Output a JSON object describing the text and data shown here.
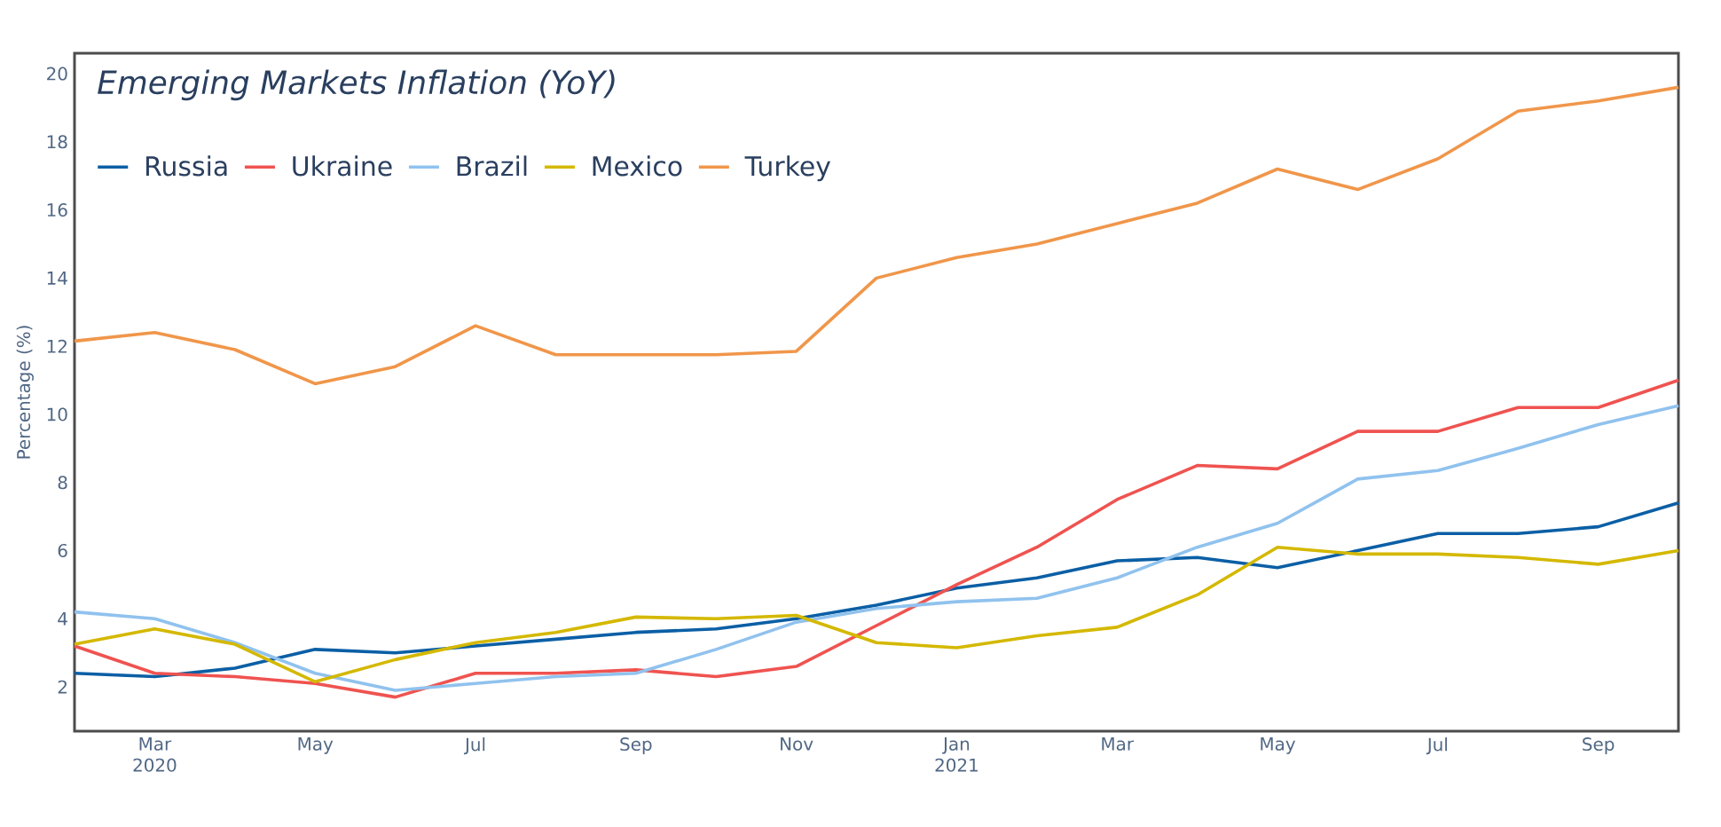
{
  "chart_data": {
    "type": "line",
    "title": "Emerging Markets Inflation (YoY)",
    "ylabel": "Percentage (%)",
    "x": [
      "2020-02",
      "2020-03",
      "2020-04",
      "2020-05",
      "2020-06",
      "2020-07",
      "2020-08",
      "2020-09",
      "2020-10",
      "2020-11",
      "2020-12",
      "2021-01",
      "2021-02",
      "2021-03",
      "2021-04",
      "2021-05",
      "2021-06",
      "2021-07",
      "2021-08",
      "2021-09",
      "2021-10"
    ],
    "series": [
      {
        "name": "Russia",
        "color": "#0b5fa5",
        "values": [
          2.4,
          2.3,
          2.55,
          3.1,
          3.0,
          3.2,
          3.4,
          3.6,
          3.7,
          4.0,
          4.4,
          4.9,
          5.2,
          5.7,
          5.8,
          5.5,
          6.0,
          6.5,
          6.5,
          6.7,
          7.4
        ]
      },
      {
        "name": "Ukraine",
        "color": "#ef5350",
        "values": [
          3.2,
          2.4,
          2.3,
          2.1,
          1.7,
          2.4,
          2.4,
          2.5,
          2.3,
          2.6,
          3.8,
          5.0,
          6.1,
          7.5,
          8.5,
          8.4,
          9.5,
          9.5,
          10.2,
          10.2,
          11.0
        ]
      },
      {
        "name": "Brazil",
        "color": "#90c2ee",
        "values": [
          4.2,
          4.0,
          3.3,
          2.4,
          1.9,
          2.1,
          2.3,
          2.4,
          3.1,
          3.9,
          4.3,
          4.5,
          4.6,
          5.2,
          6.1,
          6.8,
          8.1,
          8.35,
          9.0,
          9.7,
          10.25
        ]
      },
      {
        "name": "Mexico",
        "color": "#d4b800",
        "values": [
          3.25,
          3.7,
          3.25,
          2.15,
          2.8,
          3.3,
          3.6,
          4.05,
          4.0,
          4.1,
          3.3,
          3.15,
          3.5,
          3.75,
          4.7,
          6.1,
          5.9,
          5.9,
          5.8,
          5.6,
          6.0
        ]
      },
      {
        "name": "Turkey",
        "color": "#f0964a",
        "values": [
          12.15,
          12.4,
          11.9,
          10.9,
          11.4,
          12.6,
          11.75,
          11.75,
          11.75,
          11.85,
          14.0,
          14.6,
          15.0,
          15.6,
          16.2,
          17.2,
          16.6,
          17.5,
          18.9,
          19.2,
          19.6
        ]
      }
    ],
    "xlim": [
      "2020-02",
      "2021-10"
    ],
    "xticks": [
      {
        "value": "2020-03",
        "label": "Mar 2020"
      },
      {
        "value": "2020-05",
        "label": "May"
      },
      {
        "value": "2020-07",
        "label": "Jul"
      },
      {
        "value": "2020-09",
        "label": "Sep"
      },
      {
        "value": "2020-11",
        "label": "Nov"
      },
      {
        "value": "2021-01",
        "label": "Jan 2021"
      },
      {
        "value": "2021-03",
        "label": "Mar"
      },
      {
        "value": "2021-05",
        "label": "May"
      },
      {
        "value": "2021-07",
        "label": "Jul"
      },
      {
        "value": "2021-09",
        "label": "Sep"
      }
    ],
    "ylim": [
      0.7,
      20.6
    ],
    "yticks": [
      2,
      4,
      6,
      8,
      10,
      12,
      14,
      16,
      18,
      20
    ],
    "grid": false,
    "legend": "top left",
    "line_style": "solid"
  }
}
